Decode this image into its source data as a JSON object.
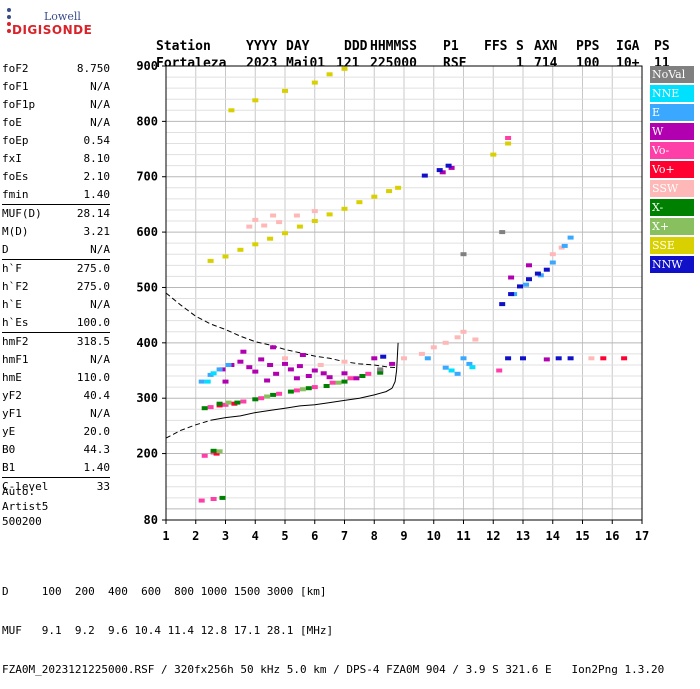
{
  "logo": {
    "line1": "Lowell",
    "line2": "DIGISONDE"
  },
  "header": {
    "labels": [
      "Station",
      "YYYY",
      "DAY",
      "DDD",
      "HHMMSS",
      "P1",
      "FFS",
      "S",
      "AXN",
      "PPS",
      "IGA",
      "PS"
    ],
    "values": [
      "Fortaleza",
      "2023",
      "Mai01",
      "121",
      "225000",
      "RSF",
      "",
      "1",
      "714",
      "100",
      "10+",
      "11"
    ]
  },
  "params_group1": [
    {
      "k": "foF2",
      "v": "8.750"
    },
    {
      "k": "foF1",
      "v": "N/A"
    },
    {
      "k": "foF1p",
      "v": "N/A"
    },
    {
      "k": "foE",
      "v": "N/A"
    },
    {
      "k": "foEp",
      "v": "0.54"
    },
    {
      "k": "fxI",
      "v": "8.10"
    },
    {
      "k": "foEs",
      "v": "2.10"
    },
    {
      "k": "fmin",
      "v": "1.40"
    }
  ],
  "params_group2": [
    {
      "k": "MUF(D)",
      "v": "28.14"
    },
    {
      "k": "M(D)",
      "v": "3.21"
    },
    {
      "k": "D",
      "v": "N/A"
    }
  ],
  "params_group3": [
    {
      "k": "h`F",
      "v": "275.0"
    },
    {
      "k": "h`F2",
      "v": "275.0"
    },
    {
      "k": "h`E",
      "v": "N/A"
    },
    {
      "k": "h`Es",
      "v": "100.0"
    }
  ],
  "params_group4": [
    {
      "k": "hmF2",
      "v": "318.5"
    },
    {
      "k": "hmF1",
      "v": "N/A"
    },
    {
      "k": "hmE",
      "v": "110.0"
    },
    {
      "k": "yF2",
      "v": "40.4"
    },
    {
      "k": "yF1",
      "v": "N/A"
    },
    {
      "k": "yE",
      "v": "20.0"
    },
    {
      "k": "B0",
      "v": "44.3"
    },
    {
      "k": "B1",
      "v": "1.40"
    }
  ],
  "params_group5": [
    {
      "k": "C-level",
      "v": "33"
    }
  ],
  "auto": {
    "line1": "Auto:",
    "line2": "Artist5",
    "line3": "500200"
  },
  "legend": [
    {
      "label": "NoVal",
      "color": "#808080"
    },
    {
      "label": "NNE",
      "color": "#00e0ff"
    },
    {
      "label": "E",
      "color": "#3aa8ff"
    },
    {
      "label": "W",
      "color": "#b000b0"
    },
    {
      "label": "Vo-",
      "color": "#ff3fa8"
    },
    {
      "label": "Vo+",
      "color": "#ff0030"
    },
    {
      "label": "SSW",
      "color": "#ffb8b8"
    },
    {
      "label": "X-",
      "color": "#008000"
    },
    {
      "label": "X+",
      "color": "#88c060"
    },
    {
      "label": "SSE",
      "color": "#d8d000"
    },
    {
      "label": "NNW",
      "color": "#1010c8"
    }
  ],
  "footer": {
    "d_row": "D     100  200  400  600  800 1000 1500 3000 [km]",
    "muf_row": "MUF   9.1  9.2  9.6 10.4 11.4 12.8 17.1 28.1 [MHz]",
    "info_row": "FZA0M_2023121225000.RSF / 320fx256h 50 kHz 5.0 km / DPS-4 FZA0M 904 / 3.9 S 321.6 E   Ion2Png 1.3.20"
  },
  "chart_data": {
    "type": "scatter",
    "xlim": [
      1,
      17
    ],
    "ylim": [
      80,
      900
    ],
    "x_ticks": [
      1,
      2,
      3,
      4,
      5,
      6,
      7,
      8,
      9,
      10,
      11,
      12,
      13,
      14,
      15,
      16,
      17
    ],
    "y_ticks": [
      80,
      200,
      300,
      400,
      500,
      600,
      700,
      800,
      900
    ],
    "grid": true,
    "legend_position": "right",
    "series": [
      {
        "name": "SSE",
        "color": "#d8d000",
        "points": [
          [
            2.5,
            548
          ],
          [
            3.0,
            556
          ],
          [
            3.5,
            568
          ],
          [
            4.0,
            578
          ],
          [
            4.5,
            588
          ],
          [
            5.0,
            598
          ],
          [
            5.5,
            610
          ],
          [
            6.0,
            620
          ],
          [
            6.5,
            632
          ],
          [
            7.0,
            642
          ],
          [
            7.5,
            654
          ],
          [
            8.0,
            664
          ],
          [
            8.5,
            674
          ],
          [
            8.8,
            680
          ],
          [
            3.2,
            820
          ],
          [
            4.0,
            838
          ],
          [
            5.0,
            855
          ],
          [
            6.0,
            870
          ],
          [
            6.5,
            885
          ],
          [
            7.0,
            895
          ],
          [
            12.0,
            740
          ],
          [
            12.5,
            760
          ]
        ]
      },
      {
        "name": "W",
        "color": "#b000b0",
        "points": [
          [
            2.9,
            352
          ],
          [
            3.2,
            360
          ],
          [
            3.5,
            366
          ],
          [
            3.8,
            356
          ],
          [
            4.0,
            348
          ],
          [
            4.2,
            370
          ],
          [
            4.5,
            360
          ],
          [
            4.7,
            344
          ],
          [
            5.0,
            362
          ],
          [
            5.2,
            352
          ],
          [
            5.5,
            358
          ],
          [
            5.8,
            340
          ],
          [
            6.0,
            350
          ],
          [
            6.3,
            345
          ],
          [
            6.5,
            338
          ],
          [
            7.0,
            345
          ],
          [
            7.4,
            336
          ],
          [
            8.0,
            372
          ],
          [
            8.6,
            362
          ],
          [
            3.6,
            384
          ],
          [
            4.6,
            392
          ],
          [
            5.6,
            378
          ],
          [
            3.0,
            330
          ],
          [
            4.4,
            332
          ],
          [
            5.4,
            336
          ],
          [
            10.3,
            708
          ],
          [
            10.6,
            716
          ],
          [
            12.6,
            518
          ],
          [
            13.2,
            540
          ],
          [
            13.8,
            370
          ]
        ]
      },
      {
        "name": "Vo-",
        "color": "#ff3fa8",
        "points": [
          [
            2.3,
            196
          ],
          [
            2.6,
            202
          ],
          [
            2.5,
            284
          ],
          [
            3.0,
            288
          ],
          [
            3.6,
            294
          ],
          [
            4.2,
            300
          ],
          [
            4.8,
            308
          ],
          [
            5.4,
            314
          ],
          [
            6.0,
            320
          ],
          [
            6.6,
            328
          ],
          [
            7.2,
            336
          ],
          [
            7.8,
            344
          ],
          [
            8.2,
            350
          ],
          [
            2.2,
            115
          ],
          [
            2.6,
            118
          ],
          [
            12.2,
            350
          ],
          [
            12.5,
            770
          ]
        ]
      },
      {
        "name": "Vo+",
        "color": "#ff0030",
        "points": [
          [
            2.7,
            200
          ],
          [
            2.8,
            287
          ],
          [
            3.3,
            290
          ],
          [
            16.4,
            372
          ],
          [
            15.7,
            372
          ]
        ]
      },
      {
        "name": "SSW",
        "color": "#ffb8b8",
        "points": [
          [
            3.8,
            610
          ],
          [
            4.0,
            622
          ],
          [
            4.3,
            612
          ],
          [
            4.6,
            630
          ],
          [
            4.8,
            618
          ],
          [
            5.4,
            630
          ],
          [
            6.0,
            638
          ],
          [
            9.6,
            380
          ],
          [
            10.0,
            392
          ],
          [
            10.4,
            400
          ],
          [
            10.8,
            410
          ],
          [
            11.0,
            420
          ],
          [
            11.4,
            406
          ],
          [
            14.0,
            560
          ],
          [
            14.3,
            572
          ],
          [
            5.0,
            372
          ],
          [
            6.2,
            360
          ],
          [
            7.0,
            366
          ],
          [
            9.0,
            372
          ],
          [
            15.3,
            372
          ]
        ]
      },
      {
        "name": "X-",
        "color": "#008000",
        "points": [
          [
            2.3,
            282
          ],
          [
            2.8,
            290
          ],
          [
            3.4,
            292
          ],
          [
            4.0,
            298
          ],
          [
            4.6,
            306
          ],
          [
            5.2,
            312
          ],
          [
            5.8,
            318
          ],
          [
            6.4,
            322
          ],
          [
            7.0,
            330
          ],
          [
            7.6,
            340
          ],
          [
            8.2,
            346
          ],
          [
            2.6,
            205
          ],
          [
            2.9,
            120
          ]
        ]
      },
      {
        "name": "X+",
        "color": "#88c060",
        "points": [
          [
            3.1,
            292
          ],
          [
            4.4,
            303
          ],
          [
            5.6,
            316
          ],
          [
            6.8,
            328
          ],
          [
            2.8,
            204
          ]
        ]
      },
      {
        "name": "E",
        "color": "#3aa8ff",
        "points": [
          [
            2.2,
            330
          ],
          [
            2.5,
            342
          ],
          [
            2.8,
            352
          ],
          [
            3.1,
            360
          ],
          [
            10.4,
            355
          ],
          [
            10.8,
            344
          ],
          [
            11.2,
            362
          ],
          [
            11.0,
            372
          ],
          [
            9.8,
            372
          ],
          [
            13.6,
            522
          ],
          [
            14.0,
            545
          ],
          [
            14.4,
            575
          ],
          [
            14.6,
            590
          ],
          [
            12.7,
            488
          ],
          [
            13.1,
            505
          ]
        ]
      },
      {
        "name": "NNE",
        "color": "#00e0ff",
        "points": [
          [
            2.4,
            330
          ],
          [
            10.6,
            350
          ],
          [
            11.3,
            356
          ],
          [
            2.6,
            345
          ]
        ]
      },
      {
        "name": "NNW",
        "color": "#1010c8",
        "points": [
          [
            12.3,
            470
          ],
          [
            12.6,
            488
          ],
          [
            12.9,
            502
          ],
          [
            13.2,
            515
          ],
          [
            13.5,
            525
          ],
          [
            13.8,
            532
          ],
          [
            12.5,
            372
          ],
          [
            13.0,
            372
          ],
          [
            14.2,
            372
          ],
          [
            14.6,
            372
          ],
          [
            10.2,
            712
          ],
          [
            10.5,
            720
          ],
          [
            9.7,
            702
          ],
          [
            8.3,
            375
          ]
        ]
      },
      {
        "name": "NoVal",
        "color": "#808080",
        "points": [
          [
            8.2,
            352
          ],
          [
            11.0,
            560
          ],
          [
            12.3,
            600
          ]
        ]
      }
    ],
    "curves": [
      {
        "style": "dashed",
        "points": [
          [
            1.0,
            490
          ],
          [
            1.5,
            468
          ],
          [
            2.0,
            448
          ],
          [
            2.5,
            434
          ],
          [
            3.0,
            424
          ],
          [
            3.5,
            412
          ],
          [
            4.0,
            402
          ],
          [
            4.5,
            396
          ],
          [
            5.0,
            388
          ],
          [
            5.5,
            382
          ],
          [
            6.0,
            376
          ],
          [
            6.5,
            372
          ],
          [
            7.0,
            366
          ],
          [
            7.5,
            362
          ],
          [
            8.0,
            360
          ],
          [
            8.5,
            356
          ],
          [
            8.8,
            355
          ]
        ]
      },
      {
        "style": "dashed",
        "points": [
          [
            1.0,
            228
          ],
          [
            1.5,
            242
          ],
          [
            2.0,
            252
          ],
          [
            2.5,
            260
          ]
        ]
      },
      {
        "style": "solid",
        "points": [
          [
            2.5,
            260
          ],
          [
            3.0,
            265
          ],
          [
            3.5,
            268
          ],
          [
            4.0,
            274
          ],
          [
            4.5,
            278
          ],
          [
            5.0,
            282
          ],
          [
            5.5,
            286
          ],
          [
            6.0,
            288
          ],
          [
            6.5,
            292
          ],
          [
            7.0,
            296
          ],
          [
            7.5,
            300
          ],
          [
            8.0,
            306
          ],
          [
            8.4,
            312
          ],
          [
            8.6,
            318
          ]
        ]
      },
      {
        "style": "solid",
        "points": [
          [
            8.6,
            318
          ],
          [
            8.7,
            330
          ],
          [
            8.75,
            350
          ],
          [
            8.78,
            380
          ],
          [
            8.8,
            400
          ]
        ]
      }
    ]
  }
}
